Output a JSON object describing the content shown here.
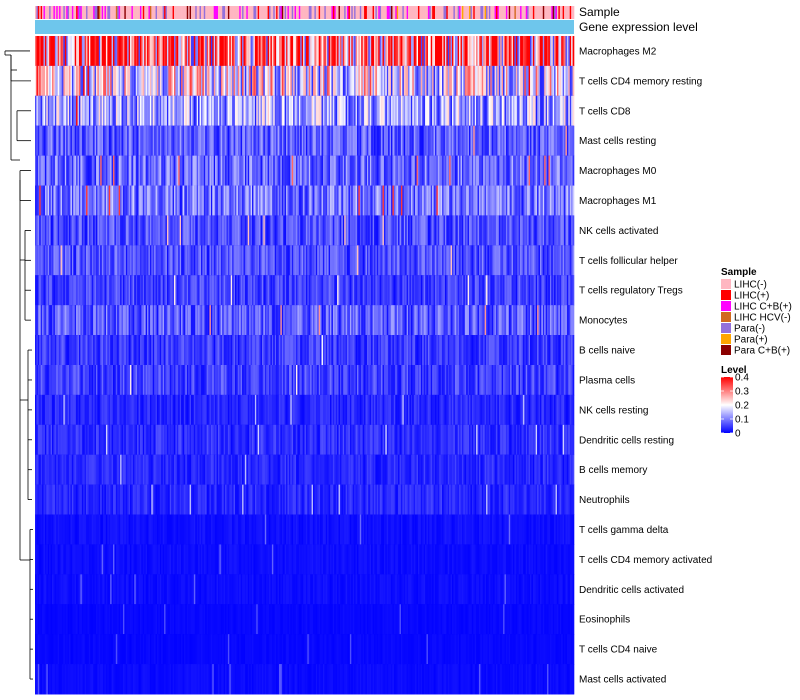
{
  "chart_data": {
    "type": "heatmap",
    "title": "",
    "annotations": [
      {
        "name": "Sample",
        "label": "Sample"
      },
      {
        "name": "Gene expression level",
        "label": "Gene expression level",
        "color": "#6EC6EC"
      }
    ],
    "rows": [
      {
        "label": "Macrophages M2",
        "mean": 0.3
      },
      {
        "label": "T cells CD4 memory resting",
        "mean": 0.19
      },
      {
        "label": "T cells CD8",
        "mean": 0.13
      },
      {
        "label": "Mast cells resting",
        "mean": 0.07
      },
      {
        "label": "Macrophages M0",
        "mean": 0.08
      },
      {
        "label": "Macrophages M1",
        "mean": 0.09
      },
      {
        "label": "NK cells activated",
        "mean": 0.06
      },
      {
        "label": "T cells follicular helper",
        "mean": 0.06
      },
      {
        "label": "T cells regulatory  Tregs",
        "mean": 0.05
      },
      {
        "label": "Monocytes",
        "mean": 0.07
      },
      {
        "label": "B cells naive",
        "mean": 0.045
      },
      {
        "label": "Plasma cells",
        "mean": 0.05
      },
      {
        "label": "NK cells resting",
        "mean": 0.03
      },
      {
        "label": "Dendritic cells resting",
        "mean": 0.035
      },
      {
        "label": "B cells memory",
        "mean": 0.03
      },
      {
        "label": "Neutrophils",
        "mean": 0.03
      },
      {
        "label": "T cells gamma delta",
        "mean": 0.012
      },
      {
        "label": "T cells CD4 memory activated",
        "mean": 0.01
      },
      {
        "label": "Dendritic cells activated",
        "mean": 0.01
      },
      {
        "label": "Eosinophils",
        "mean": 0.006
      },
      {
        "label": "T cells CD4 naive",
        "mean": 0.006
      },
      {
        "label": "Mast cells activated",
        "mean": 0.008
      }
    ],
    "legend_sample": {
      "title": "Sample",
      "entries": [
        {
          "label": "LIHC(-)",
          "color": "#FFB6C1"
        },
        {
          "label": "LIHC(+)",
          "color": "#FF0000"
        },
        {
          "label": "LIHC C+B(+)",
          "color": "#FF00FF"
        },
        {
          "label": "LIHC HCV(-)",
          "color": "#D2691E"
        },
        {
          "label": "Para(-)",
          "color": "#9370DB"
        },
        {
          "label": "Para(+)",
          "color": "#FFA500"
        },
        {
          "label": "Para C+B(+)",
          "color": "#8B0000"
        }
      ]
    },
    "legend_level": {
      "title": "Level",
      "ticks": [
        "0.4",
        "0.3",
        "0.2",
        "0.1",
        "0"
      ],
      "range": [
        0,
        0.4
      ],
      "colors": [
        "#0000FF",
        "#FFFFFF",
        "#FF0000"
      ]
    },
    "sample_mix": [
      0.62,
      0.07,
      0.12,
      0.02,
      0.12,
      0.02,
      0.03
    ]
  }
}
